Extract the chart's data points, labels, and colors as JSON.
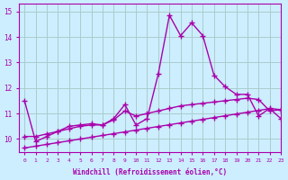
{
  "title": "",
  "xlabel": "Windchill (Refroidissement éolien,°C)",
  "ylabel": "",
  "bg_color": "#cceeff",
  "grid_color": "#aacccc",
  "line_color": "#aa00aa",
  "x_values": [
    0,
    1,
    2,
    3,
    4,
    5,
    6,
    7,
    8,
    9,
    10,
    11,
    12,
    13,
    14,
    15,
    16,
    17,
    18,
    19,
    20,
    21,
    22,
    23
  ],
  "line1": [
    11.5,
    9.9,
    10.1,
    10.3,
    10.5,
    10.55,
    10.6,
    10.55,
    10.8,
    11.35,
    10.55,
    10.8,
    12.55,
    14.85,
    14.05,
    14.55,
    14.05,
    12.5,
    12.05,
    11.75,
    11.75,
    10.9,
    11.2,
    11.15
  ],
  "line2": [
    10.1,
    10.1,
    10.2,
    10.3,
    10.4,
    10.5,
    10.55,
    10.55,
    10.75,
    11.1,
    10.9,
    11.0,
    11.1,
    11.2,
    11.3,
    11.35,
    11.4,
    11.45,
    11.5,
    11.55,
    11.6,
    11.55,
    11.1,
    11.15
  ],
  "line3": [
    9.65,
    9.72,
    9.79,
    9.86,
    9.93,
    10.0,
    10.07,
    10.14,
    10.21,
    10.28,
    10.35,
    10.42,
    10.49,
    10.56,
    10.63,
    10.7,
    10.77,
    10.84,
    10.91,
    10.98,
    11.05,
    11.12,
    11.19,
    10.8
  ],
  "ylim": [
    9.5,
    15.3
  ],
  "xlim": [
    -0.5,
    23
  ],
  "yticks": [
    10,
    11,
    12,
    13,
    14,
    15
  ],
  "xticks": [
    0,
    1,
    2,
    3,
    4,
    5,
    6,
    7,
    8,
    9,
    10,
    11,
    12,
    13,
    14,
    15,
    16,
    17,
    18,
    19,
    20,
    21,
    22,
    23
  ],
  "marker": "+",
  "marker_size": 4,
  "line_width": 1.0
}
